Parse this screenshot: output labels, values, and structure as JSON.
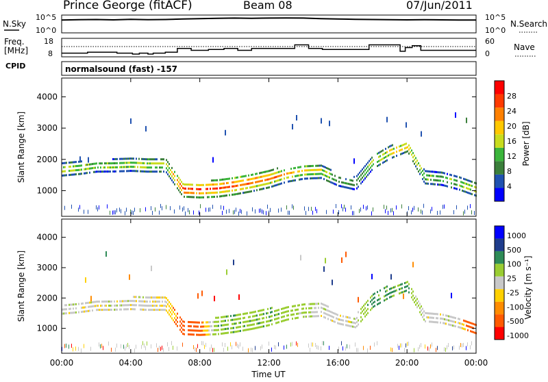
{
  "header": {
    "title": "Prince George (fitACF)",
    "beam": "Beam 08",
    "date": "07/Jun/2011"
  },
  "noise_panel": {
    "left_label": "N.Sky",
    "left_ticks": [
      "10^5",
      "10^0"
    ],
    "right_ticks": [
      "10^5",
      "10^0"
    ],
    "right_label": "N.Search"
  },
  "freq_panel": {
    "left_label_line1": "Freq.",
    "left_label_line2": "[MHz]",
    "left_ticks": [
      "18",
      "8"
    ],
    "right_ticks": [
      "60",
      "0"
    ],
    "right_label": "Nave"
  },
  "cpid_panel": {
    "label": "CPID",
    "text": "normalsound (fast) -157"
  },
  "colors": {
    "power_scale": [
      "#0000ff",
      "#2052b0",
      "#3b7f3b",
      "#3bb53b",
      "#c8dc1e",
      "#ffc800",
      "#ff8000",
      "#ff3a00",
      "#ff0000"
    ],
    "velocity_scale": [
      "#ff0000",
      "#ff5a00",
      "#ff8c00",
      "#ffd000",
      "#c8c8c8",
      "#9acd32",
      "#2e8b57",
      "#1e3c8c",
      "#0000ff"
    ]
  },
  "chart_data": [
    {
      "type": "line",
      "panel": "noise",
      "x": [
        0,
        1,
        2,
        3,
        4,
        5,
        6,
        7,
        8,
        9,
        10,
        11,
        12,
        13,
        14,
        15,
        16,
        17,
        18,
        19,
        20,
        21,
        22,
        23,
        24
      ],
      "series": [
        {
          "values": [
            0.72,
            0.74,
            0.75,
            0.73,
            0.76,
            0.74,
            0.75,
            0.78,
            0.8,
            0.82,
            0.83,
            0.82,
            0.83,
            0.84,
            0.83,
            0.8,
            0.78,
            0.76,
            0.75,
            0.74,
            0.73,
            0.74,
            0.73,
            0.72,
            0.72
          ]
        }
      ]
    },
    {
      "type": "line",
      "panel": "frequency",
      "x": [
        0,
        1.5,
        2,
        3.2,
        4.1,
        4.5,
        5,
        5.3,
        6,
        6.7,
        7.5,
        8.5,
        9.4,
        10.2,
        11,
        13.5,
        14.3,
        15.1,
        17.8,
        19.6,
        19.9,
        20.3,
        20.8,
        24
      ],
      "series": [
        {
          "name": "Freq. [MHz]",
          "values": [
            10,
            10.5,
            10.5,
            10,
            9.5,
            10,
            9.5,
            10,
            10.5,
            12.5,
            11.5,
            12,
            12.5,
            11.5,
            12.5,
            14.5,
            12.5,
            12,
            14.5,
            11,
            13,
            14,
            11.5,
            11.5
          ]
        }
      ],
      "ylim": [
        8,
        18
      ]
    },
    {
      "type": "heatmap",
      "panel": "power",
      "x_ticks": [
        "00:00",
        "04:00",
        "08:00",
        "12:00",
        "16:00",
        "20:00",
        "00:00"
      ],
      "xlim": [
        0,
        24
      ],
      "ylabel": "Slant Range [km]",
      "y_ticks": [
        1000,
        2000,
        3000,
        4000
      ],
      "ylim": [
        180,
        4600
      ],
      "colorbar_label": "Power [dB]",
      "colorbar_ticks": [
        4,
        8,
        12,
        16,
        20,
        24,
        28
      ],
      "clim": [
        0,
        32
      ],
      "x": [
        0,
        1,
        2,
        3,
        4,
        5,
        6,
        7,
        8,
        9,
        10,
        11,
        12,
        13,
        14,
        15,
        16,
        17,
        18,
        19,
        20,
        21,
        22,
        23,
        24
      ],
      "echo_center_km": [
        1650,
        1700,
        1750,
        1780,
        1800,
        1800,
        1800,
        1000,
        1000,
        1050,
        1150,
        1250,
        1350,
        1500,
        1600,
        1600,
        1300,
        1200,
        1900,
        2200,
        2400,
        1400,
        1350,
        1200,
        1000
      ],
      "echo_width_km": [
        400,
        400,
        350,
        400,
        400,
        450,
        450,
        450,
        500,
        550,
        600,
        600,
        550,
        500,
        500,
        450,
        350,
        400,
        450,
        400,
        350,
        400,
        400,
        400,
        400
      ],
      "peak_power_db": [
        18,
        18,
        16,
        16,
        17,
        18,
        16,
        30,
        29,
        28,
        26,
        26,
        25,
        22,
        20,
        18,
        14,
        10,
        18,
        20,
        22,
        16,
        14,
        16,
        20
      ]
    },
    {
      "type": "heatmap",
      "panel": "velocity",
      "x_ticks": [
        "00:00",
        "04:00",
        "08:00",
        "12:00",
        "16:00",
        "20:00",
        "00:00"
      ],
      "xlabel": "Time UT",
      "xlim": [
        0,
        24
      ],
      "ylabel": "Slant Range [km]",
      "y_ticks": [
        1000,
        2000,
        3000,
        4000
      ],
      "ylim": [
        180,
        4600
      ],
      "colorbar_label": "Velocity [m s⁻¹]",
      "colorbar_ticks": [
        1000,
        500,
        100,
        25,
        -25,
        -100,
        -500,
        -1000
      ],
      "x": [
        0,
        1,
        2,
        3,
        4,
        5,
        6,
        7,
        8,
        9,
        10,
        11,
        12,
        13,
        14,
        15,
        16,
        17,
        18,
        19,
        20,
        21,
        22,
        23,
        24
      ],
      "echo_center_km": [
        1650,
        1700,
        1750,
        1780,
        1800,
        1800,
        1800,
        1000,
        1000,
        1050,
        1150,
        1250,
        1350,
        1500,
        1600,
        1600,
        1300,
        1200,
        1900,
        2200,
        2400,
        1400,
        1350,
        1200,
        1000
      ],
      "echo_width_km": [
        400,
        400,
        350,
        400,
        400,
        450,
        450,
        450,
        500,
        550,
        600,
        600,
        550,
        500,
        500,
        450,
        350,
        400,
        450,
        400,
        350,
        400,
        400,
        400,
        400
      ],
      "velocity_ms": [
        0,
        0,
        0,
        0,
        0,
        0,
        -20,
        -200,
        -150,
        80,
        90,
        80,
        90,
        60,
        50,
        0,
        0,
        0,
        120,
        110,
        100,
        0,
        0,
        0,
        -300
      ]
    }
  ]
}
